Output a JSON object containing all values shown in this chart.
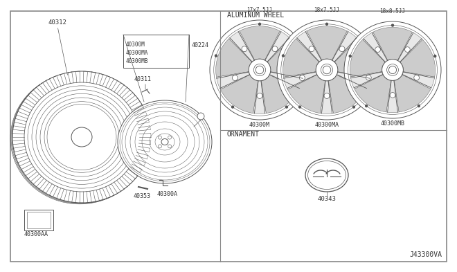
{
  "bg_color": "#ffffff",
  "line_color": "#555555",
  "text_color": "#333333",
  "labels": {
    "tire": "40312",
    "wheel_assy": "40300M\n40300MA\n40300MB",
    "valve_stem": "40311",
    "valve_cap": "40224",
    "lug_nut": "40300A",
    "wheel_weight": "40353",
    "wheel_cap_label": "40300AA",
    "aluminum_wheel": "ALUMINUM WHEEL",
    "wheel1_size": "17x7.5JJ",
    "wheel2_size": "18x7.5JJ",
    "wheel3_size": "18x8.5JJ",
    "wheel1_part": "40300M",
    "wheel2_part": "40300MA",
    "wheel3_part": "40300MB",
    "ornament": "ORNAMENT",
    "ornament_part": "40343",
    "diagram_id": "J43300VA"
  }
}
